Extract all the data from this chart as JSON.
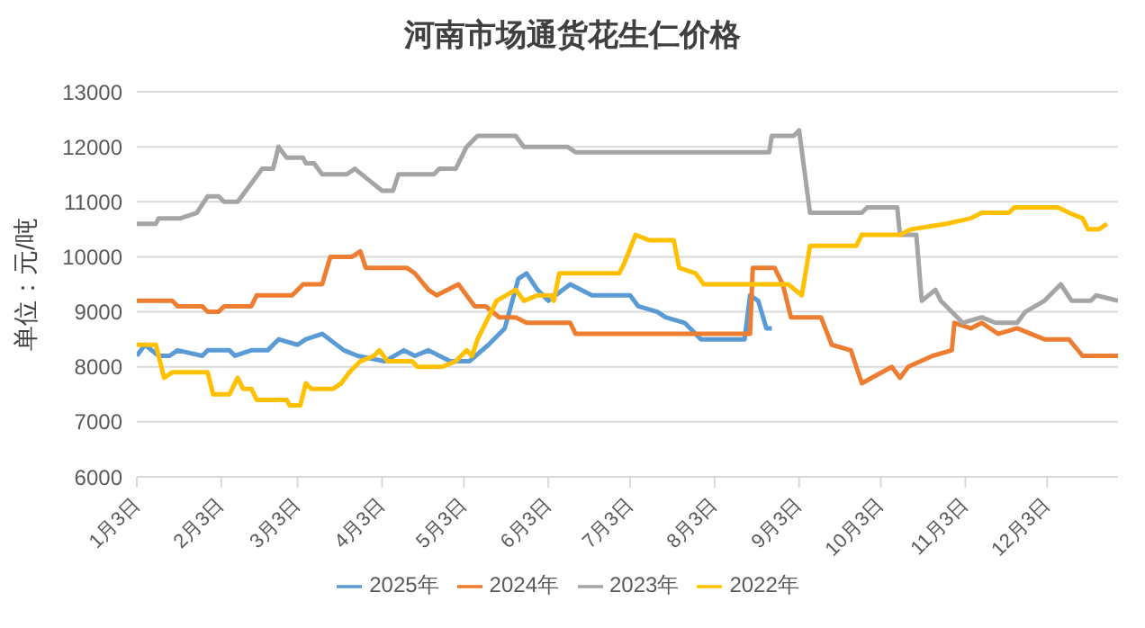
{
  "chart_data": {
    "type": "line",
    "title": "河南市场通货花生仁价格",
    "ylabel": "单位：元/吨",
    "xlim": [
      "--01-03",
      "--12-29"
    ],
    "xticks": [
      {
        "value": "--01-03",
        "label": "1月3日"
      },
      {
        "value": "--02-03",
        "label": "2月3日"
      },
      {
        "value": "--03-03",
        "label": "3月3日"
      },
      {
        "value": "--04-03",
        "label": "4月3日"
      },
      {
        "value": "--05-03",
        "label": "5月3日"
      },
      {
        "value": "--06-03",
        "label": "6月3日"
      },
      {
        "value": "--07-03",
        "label": "7月3日"
      },
      {
        "value": "--08-03",
        "label": "8月3日"
      },
      {
        "value": "--09-03",
        "label": "9月3日"
      },
      {
        "value": "--10-03",
        "label": "10月3日"
      },
      {
        "value": "--11-03",
        "label": "11月3日"
      },
      {
        "value": "--12-03",
        "label": "12月3日"
      }
    ],
    "ylim": [
      6000,
      13000
    ],
    "yticks": [
      6000,
      7000,
      8000,
      9000,
      10000,
      11000,
      12000,
      13000
    ],
    "grid": "y",
    "legend": "bottom",
    "marker": "none",
    "line_style": "solid",
    "series": [
      {
        "name": "2025年",
        "color": "#5b9bd5",
        "x": [
          "--01-03",
          "--01-06",
          "--01-11",
          "--01-15",
          "--01-18",
          "--01-27",
          "--01-29",
          "--02-06",
          "--02-08",
          "--02-14",
          "--02-20",
          "--02-24",
          "--03-03",
          "--03-06",
          "--03-12",
          "--03-20",
          "--03-25",
          "--04-04",
          "--04-11",
          "--04-15",
          "--04-20",
          "--04-28",
          "--05-05",
          "--05-12",
          "--05-18",
          "--05-23",
          "--05-26",
          "--05-30",
          "--06-03",
          "--06-11",
          "--06-19",
          "--07-03",
          "--07-06",
          "--07-13",
          "--07-16",
          "--07-23",
          "--07-29",
          "--08-14",
          "--08-16",
          "--08-19",
          "--08-22",
          "--08-24"
        ],
        "values": [
          8200,
          8400,
          8200,
          8200,
          8300,
          8200,
          8300,
          8300,
          8200,
          8300,
          8300,
          8500,
          8400,
          8500,
          8600,
          8300,
          8200,
          8100,
          8300,
          8200,
          8300,
          8100,
          8100,
          8400,
          8700,
          9600,
          9700,
          9400,
          9200,
          9500,
          9300,
          9300,
          9100,
          9000,
          8900,
          8800,
          8500,
          8500,
          9300,
          9200,
          8700,
          8700
        ]
      },
      {
        "name": "2024年",
        "color": "#ed7d31",
        "x": [
          "--01-03",
          "--01-16",
          "--01-18",
          "--01-27",
          "--01-29",
          "--02-02",
          "--02-04",
          "--02-14",
          "--02-16",
          "--03-01",
          "--03-05",
          "--03-12",
          "--03-15",
          "--03-23",
          "--03-26",
          "--03-28",
          "--04-12",
          "--04-15",
          "--04-20",
          "--04-23",
          "--05-01",
          "--05-07",
          "--05-11",
          "--05-16",
          "--05-22",
          "--05-26",
          "--06-11",
          "--06-13",
          "--08-16",
          "--08-17",
          "--08-25",
          "--08-28",
          "--08-31",
          "--09-11",
          "--09-15",
          "--09-22",
          "--09-26",
          "--10-07",
          "--10-10",
          "--10-13",
          "--10-22",
          "--10-29",
          "--10-30",
          "--11-05",
          "--11-09",
          "--11-15",
          "--11-22",
          "--12-02",
          "--12-11",
          "--12-16",
          "--12-29"
        ],
        "values": [
          9200,
          9200,
          9100,
          9100,
          9000,
          9000,
          9100,
          9100,
          9300,
          9300,
          9500,
          9500,
          10000,
          10000,
          10100,
          9800,
          9800,
          9700,
          9400,
          9300,
          9500,
          9100,
          9100,
          8900,
          8900,
          8800,
          8800,
          8600,
          8600,
          9800,
          9800,
          9500,
          8900,
          8900,
          8400,
          8300,
          7700,
          8000,
          7800,
          8000,
          8200,
          8300,
          8800,
          8700,
          8800,
          8600,
          8700,
          8500,
          8500,
          8200,
          8200
        ]
      },
      {
        "name": "2023年",
        "color": "#a5a5a5",
        "x": [
          "--01-03",
          "--01-10",
          "--01-11",
          "--01-19",
          "--01-25",
          "--01-29",
          "--02-02",
          "--02-04",
          "--02-09",
          "--02-12",
          "--02-18",
          "--02-22",
          "--02-24",
          "--02-27",
          "--03-05",
          "--03-06",
          "--03-09",
          "--03-12",
          "--03-21",
          "--03-24",
          "--03-29",
          "--04-03",
          "--04-07",
          "--04-09",
          "--04-22",
          "--04-24",
          "--04-30",
          "--05-04",
          "--05-08",
          "--05-22",
          "--05-25",
          "--06-10",
          "--06-13",
          "--08-23",
          "--08-24",
          "--09-01",
          "--09-03",
          "--09-07",
          "--09-26",
          "--09-28",
          "--10-09",
          "--10-10",
          "--10-16",
          "--10-18",
          "--10-23",
          "--10-25",
          "--10-29",
          "--11-02",
          "--11-09",
          "--11-14",
          "--11-22",
          "--11-25",
          "--12-02",
          "--12-08",
          "--12-12",
          "--12-19",
          "--12-21",
          "--12-29"
        ],
        "values": [
          10600,
          10600,
          10700,
          10700,
          10800,
          11100,
          11100,
          11000,
          11000,
          11200,
          11600,
          11600,
          12000,
          11800,
          11800,
          11700,
          11700,
          11500,
          11500,
          11600,
          11400,
          11200,
          11200,
          11500,
          11500,
          11600,
          11600,
          12000,
          12200,
          12200,
          12000,
          12000,
          11900,
          11900,
          12200,
          12200,
          12300,
          10800,
          10800,
          10900,
          10900,
          10400,
          10400,
          9200,
          9400,
          9200,
          9000,
          8800,
          8900,
          8800,
          8800,
          9000,
          9200,
          9500,
          9200,
          9200,
          9300,
          9200
        ]
      },
      {
        "name": "2022年",
        "color": "#ffc000",
        "x": [
          "--01-03",
          "--01-10",
          "--01-13",
          "--01-16",
          "--01-29",
          "--01-31",
          "--02-06",
          "--02-09",
          "--02-11",
          "--02-14",
          "--02-16",
          "--02-27",
          "--02-28",
          "--03-04",
          "--03-06",
          "--03-08",
          "--03-16",
          "--03-19",
          "--03-22",
          "--03-26",
          "--03-31",
          "--04-02",
          "--04-05",
          "--04-14",
          "--04-16",
          "--04-25",
          "--04-30",
          "--05-04",
          "--05-06",
          "--05-08",
          "--05-15",
          "--05-22",
          "--05-25",
          "--05-30",
          "--06-04",
          "--06-05",
          "--06-07",
          "--06-29",
          "--07-01",
          "--07-05",
          "--07-10",
          "--07-19",
          "--07-21",
          "--07-27",
          "--07-30",
          "--08-30",
          "--09-04",
          "--09-07",
          "--09-24",
          "--09-26",
          "--10-10",
          "--10-14",
          "--10-27",
          "--11-05",
          "--11-09",
          "--11-19",
          "--11-21",
          "--12-07",
          "--12-11",
          "--12-16",
          "--12-18",
          "--12-22",
          "--12-25"
        ],
        "values": [
          8400,
          8400,
          7800,
          7900,
          7900,
          7500,
          7500,
          7800,
          7600,
          7600,
          7400,
          7400,
          7300,
          7300,
          7700,
          7600,
          7600,
          7700,
          7900,
          8100,
          8200,
          8300,
          8100,
          8100,
          8000,
          8000,
          8100,
          8300,
          8200,
          8500,
          9200,
          9400,
          9200,
          9300,
          9300,
          9200,
          9700,
          9700,
          9900,
          10400,
          10300,
          10300,
          9800,
          9700,
          9500,
          9500,
          9300,
          10200,
          10200,
          10400,
          10400,
          10500,
          10600,
          10700,
          10800,
          10800,
          10900,
          10900,
          10800,
          10700,
          10500,
          10500,
          10600
        ]
      }
    ]
  }
}
